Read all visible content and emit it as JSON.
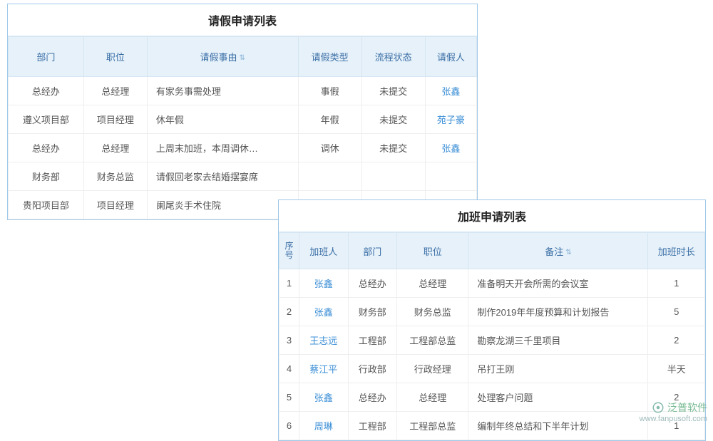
{
  "leave": {
    "title": "请假申请列表",
    "columns": [
      "部门",
      "职位",
      "请假事由",
      "请假类型",
      "流程状态",
      "请假人"
    ],
    "sortable_col_index": 2,
    "rows": [
      {
        "dept": "总经办",
        "pos": "总经理",
        "reason": "有家务事需处理",
        "type": "事假",
        "status": "未提交",
        "person": "张鑫"
      },
      {
        "dept": "遵义项目部",
        "pos": "项目经理",
        "reason": "休年假",
        "type": "年假",
        "status": "未提交",
        "person": "苑子豪"
      },
      {
        "dept": "总经办",
        "pos": "总经理",
        "reason": "上周末加班，本周调休…",
        "type": "调休",
        "status": "未提交",
        "person": "张鑫"
      },
      {
        "dept": "财务部",
        "pos": "财务总监",
        "reason": "请假回老家去结婚摆宴席",
        "type": "",
        "status": "",
        "person": ""
      },
      {
        "dept": "贵阳项目部",
        "pos": "项目经理",
        "reason": "阑尾炎手术住院",
        "type": "",
        "status": "",
        "person": ""
      }
    ]
  },
  "overtime": {
    "title": "加班申请列表",
    "columns": [
      "序号",
      "加班人",
      "部门",
      "职位",
      "备注",
      "加班时长"
    ],
    "sortable_col_index": 4,
    "rows": [
      {
        "idx": "1",
        "person": "张鑫",
        "dept": "总经办",
        "pos": "总经理",
        "note": "准备明天开会所需的会议室",
        "dur": "1"
      },
      {
        "idx": "2",
        "person": "张鑫",
        "dept": "财务部",
        "pos": "财务总监",
        "note": "制作2019年年度预算和计划报告",
        "dur": "5"
      },
      {
        "idx": "3",
        "person": "王志远",
        "dept": "工程部",
        "pos": "工程部总监",
        "note": "勘察龙湖三千里项目",
        "dur": "2"
      },
      {
        "idx": "4",
        "person": "蔡江平",
        "dept": "行政部",
        "pos": "行政经理",
        "note": "吊打王刚",
        "dur": "半天"
      },
      {
        "idx": "5",
        "person": "张鑫",
        "dept": "总经办",
        "pos": "总经理",
        "note": "处理客户问题",
        "dur": "2"
      },
      {
        "idx": "6",
        "person": "周琳",
        "dept": "工程部",
        "pos": "工程部总监",
        "note": "编制年终总结和下半年计划",
        "dur": "1"
      }
    ]
  },
  "watermark": {
    "brand": "泛普软件",
    "url": "www.fanpusoft.com"
  },
  "colors": {
    "panel_border": "#a0c8e8",
    "header_bg": "#e6f1fa",
    "header_fg": "#3a6ea5",
    "cell_border": "#eee",
    "link": "#3a8ed6"
  }
}
